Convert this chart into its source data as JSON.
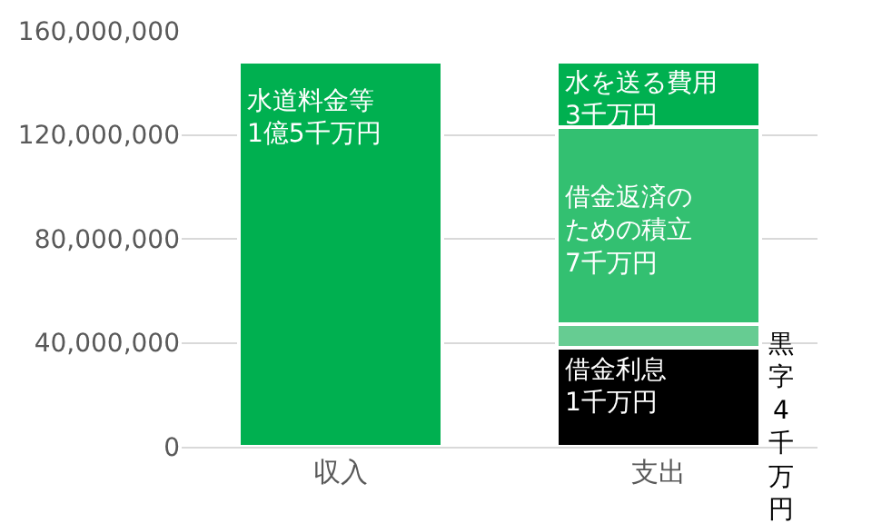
{
  "chart_data": {
    "type": "bar",
    "stacked": true,
    "categories": [
      "収入",
      "支出"
    ],
    "series": [
      {
        "color": "#00b050",
        "values": [
          148000000,
          null
        ]
      },
      {
        "color": "#000000",
        "values": [
          null,
          38000000
        ]
      },
      {
        "color": "#66cc92",
        "values": [
          null,
          9000000
        ]
      },
      {
        "color": "#33c071",
        "values": [
          null,
          76000000
        ]
      },
      {
        "color": "#00b050",
        "values": [
          null,
          25000000
        ]
      }
    ],
    "ylim": [
      0,
      160000000
    ],
    "yticks": [
      {
        "value": 0,
        "label": "0"
      },
      {
        "value": 40000000,
        "label": "40,000,000"
      },
      {
        "value": 80000000,
        "label": "80,000,000"
      },
      {
        "value": 120000000,
        "label": "120,000,000"
      },
      {
        "value": 160000000,
        "label": "160,000,000"
      }
    ],
    "grid": "y",
    "annotations": [
      "水道料金等\n1億5千万円",
      "水を送る費用\n3千万円",
      "借金返済のための積立\n7千万円",
      "借金利息\n1千万円",
      "黒字4千万円"
    ]
  }
}
